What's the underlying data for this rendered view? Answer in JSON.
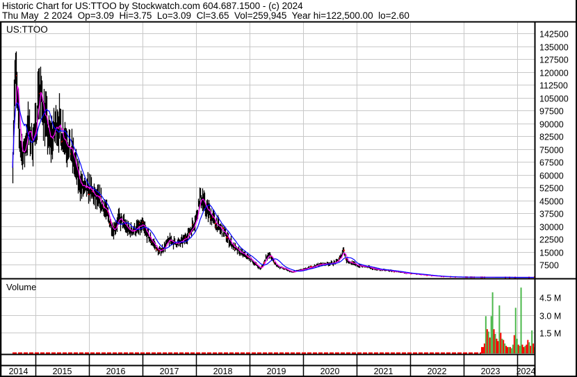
{
  "header": {
    "line1": "Historic Chart for US:TTOO by Stockwatch.com 604.687.1500 - (c) 2024",
    "line2": "Thu May  2 2024  Op=3.09  Hi=3.75  Lo=3.09  Cl=3.65  Vol=259,945  Year hi=122,500.00  lo=2.60"
  },
  "chart_data": [
    {
      "type": "line",
      "title": "US:TTOO",
      "y_ticks": [
        7500,
        15000,
        22500,
        30000,
        37500,
        45000,
        52500,
        60000,
        67500,
        75000,
        82500,
        90000,
        97500,
        105000,
        112500,
        120000,
        127500,
        135000,
        142500
      ],
      "ylim": [
        0,
        146000
      ],
      "grid": true,
      "y_axis_position": "right",
      "series": [
        {
          "color": "#000000",
          "style": "high-low bars"
        },
        {
          "color": "#ff00ff",
          "style": "short moving average"
        },
        {
          "color": "#0000ff",
          "style": "long moving average"
        }
      ],
      "x": [
        2014.57,
        2014.6,
        2014.63,
        2014.68,
        2014.72,
        2014.78,
        2014.85,
        2014.92,
        2015.0,
        2015.05,
        2015.1,
        2015.17,
        2015.25,
        2015.32,
        2015.4,
        2015.47,
        2015.55,
        2015.63,
        2015.7,
        2015.77,
        2015.85,
        2015.93,
        2016.0,
        2016.1,
        2016.2,
        2016.3,
        2016.38,
        2016.45,
        2016.55,
        2016.65,
        2016.75,
        2016.85,
        2017.0,
        2017.1,
        2017.2,
        2017.3,
        2017.38,
        2017.5,
        2017.6,
        2017.7,
        2017.8,
        2017.9,
        2018.0,
        2018.05,
        2018.1,
        2018.17,
        2018.25,
        2018.35,
        2018.45,
        2018.55,
        2018.65,
        2018.75,
        2018.85,
        2019.0,
        2019.1,
        2019.2,
        2019.3,
        2019.38,
        2019.47,
        2019.55,
        2019.65,
        2019.8,
        2019.9,
        2020.0,
        2020.15,
        2020.3,
        2020.45,
        2020.6,
        2020.7,
        2020.75,
        2020.8,
        2020.9,
        2021.0,
        2021.2,
        2021.4,
        2021.6,
        2021.8,
        2022.0,
        2022.25,
        2022.5,
        2022.75,
        2023.0,
        2023.5,
        2024.0,
        2024.33
      ],
      "y": [
        68000,
        110000,
        118000,
        90000,
        75000,
        72000,
        88000,
        80000,
        85000,
        112000,
        104000,
        95000,
        80000,
        82000,
        92000,
        86000,
        82000,
        76000,
        70000,
        60000,
        54000,
        50000,
        52000,
        47000,
        44000,
        40000,
        33000,
        28000,
        34000,
        31000,
        27000,
        28000,
        30000,
        24000,
        20000,
        15000,
        17000,
        22000,
        20000,
        20000,
        23000,
        28000,
        35000,
        45000,
        47000,
        40000,
        38000,
        32000,
        28000,
        25000,
        20000,
        16000,
        14000,
        11000,
        8000,
        5000,
        12000,
        13000,
        8000,
        6000,
        5000,
        3000,
        4000,
        4500,
        6000,
        7500,
        8000,
        8500,
        12000,
        17000,
        10000,
        8500,
        7000,
        6000,
        4500,
        4000,
        3000,
        2200,
        1500,
        700,
        300,
        150,
        60,
        10,
        3.65
      ]
    },
    {
      "type": "bar",
      "title": "Volume",
      "y_ticks": [
        "1.5 M",
        "3.0 M",
        "4.5 M"
      ],
      "ylim": [
        0,
        6000000
      ],
      "grid": true,
      "up_color": "#4cb84c",
      "down_color": "#ff0000",
      "values_m": [
        0.3,
        0.3,
        0.6,
        2.9,
        1.8,
        1.6,
        1.1,
        2.9,
        4.9,
        1.8,
        1.4,
        1.0,
        0.8,
        3.8,
        1.5,
        1.0,
        0.9,
        0.6,
        0.4,
        0.3,
        0.3,
        0.3,
        0.2,
        0.5,
        1.3,
        3.6,
        1.0,
        0.5,
        0.4,
        5.3,
        0.5,
        0.3,
        0.4,
        0.5,
        0.9,
        0.7,
        0.4,
        1.7,
        0.6,
        0.3
      ],
      "directions": [
        "d",
        "d",
        "d",
        "u",
        "d",
        "u",
        "d",
        "u",
        "u",
        "d",
        "u",
        "d",
        "d",
        "u",
        "d",
        "u",
        "d",
        "u",
        "d",
        "d",
        "u",
        "d",
        "u",
        "u",
        "d",
        "u",
        "u",
        "d",
        "u",
        "u",
        "d",
        "d",
        "u",
        "d",
        "d",
        "u",
        "d",
        "u",
        "d",
        "u"
      ]
    }
  ],
  "x_axis": {
    "labels": [
      "2014",
      "2015",
      "2016",
      "2017",
      "2018",
      "2019",
      "2020",
      "2021",
      "2022",
      "2023",
      "2024"
    ]
  }
}
